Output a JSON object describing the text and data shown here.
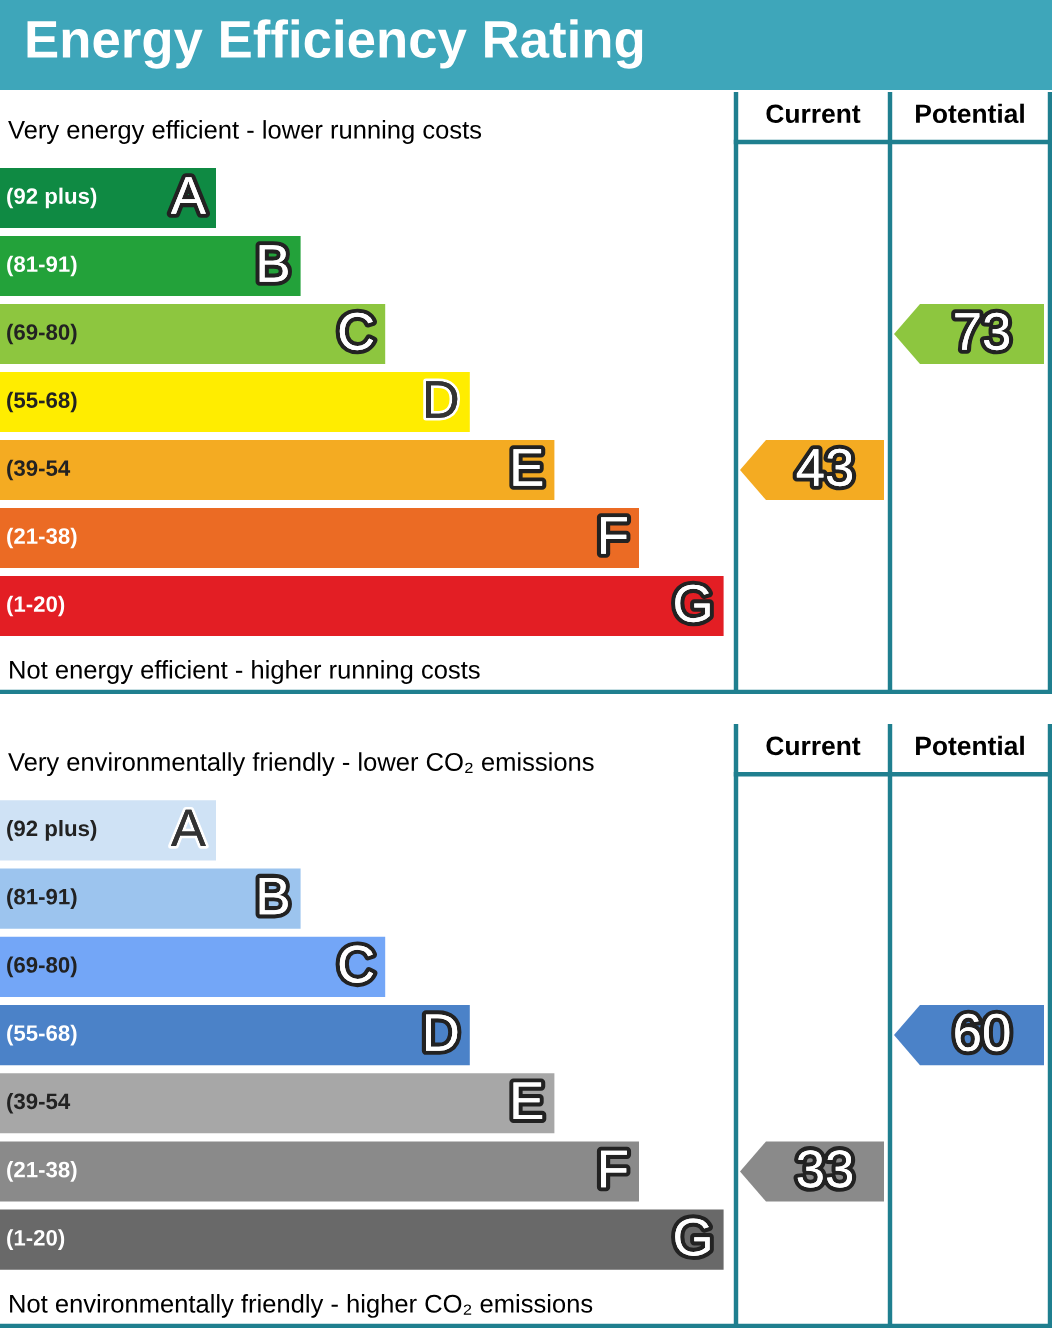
{
  "chart_data": [
    {
      "type": "other",
      "data_labels": true,
      "title": "Energy Efficiency Rating",
      "subtitle": "Very energy efficient - lower running costs",
      "annotations": [
        "Not energy efficient - higher running costs",
        "Current",
        "Potential"
      ],
      "categories": [
        "(92 plus)",
        "(81-91)",
        "(69-80)",
        "(55-68)",
        "(39-54",
        "(21-38)",
        "(1-20)"
      ],
      "value_labels": [
        "A",
        "B",
        "C",
        "D",
        "E",
        "F",
        "G"
      ],
      "colors": [
        "#0f8a43",
        "#23a23a",
        "#8dc63f",
        "#ffed00",
        "#f4ab22",
        "#eb6b24",
        "#e31e24"
      ],
      "series": [
        {
          "color": "#f4ab22",
          "values": [
            null,
            null,
            null,
            null,
            43,
            null,
            null
          ]
        },
        {
          "color": "#8dc63f",
          "values": [
            null,
            null,
            73,
            null,
            null,
            null,
            null
          ]
        }
      ]
    },
    {
      "type": "other",
      "data_labels": true,
      "subtitle": "Very environmentally friendly - lower CO₂ emissions",
      "annotations": [
        "Not environmentally friendly - higher CO₂ emissions",
        "Current",
        "Potential"
      ],
      "categories": [
        "(92 plus)",
        "(81-91)",
        "(69-80)",
        "(55-68)",
        "(39-54",
        "(21-38)",
        "(1-20)"
      ],
      "value_labels": [
        "A",
        "B",
        "C",
        "D",
        "E",
        "F",
        "G"
      ],
      "colors": [
        "#cfe2f5",
        "#9cc4ee",
        "#73a6f7",
        "#4b82c8",
        "#a7a7a7",
        "#8a8a8a",
        "#696969"
      ],
      "series": [
        {
          "color": "#8a8a8a",
          "values": [
            null,
            null,
            null,
            null,
            null,
            33,
            null
          ]
        },
        {
          "color": "#4b82c8",
          "values": [
            null,
            null,
            null,
            60,
            null,
            null,
            null
          ]
        }
      ]
    }
  ]
}
